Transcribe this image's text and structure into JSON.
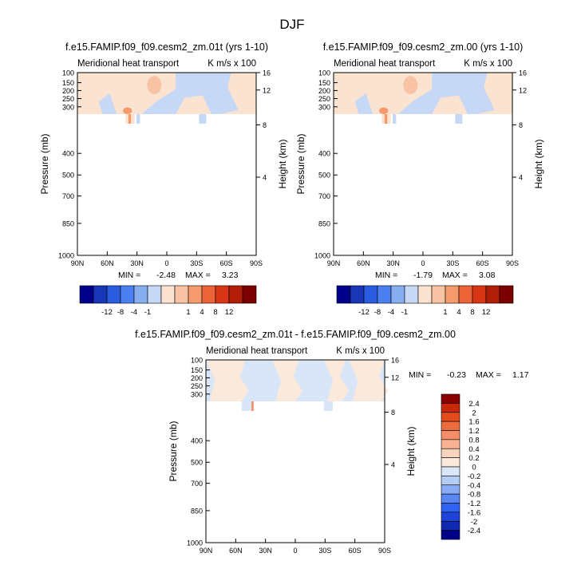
{
  "figure_title": "DJF",
  "colors": {
    "frame": "#000000",
    "text": "#000000",
    "background": "#ffffff"
  },
  "panel_palette": [
    "#00008b",
    "#1a36b8",
    "#2a5ce0",
    "#4a80f0",
    "#88aef2",
    "#c6d8f5",
    "#fae3d0",
    "#f8c3a4",
    "#f49a6c",
    "#ec6338",
    "#d83516",
    "#b01e08",
    "#7d0000"
  ],
  "diff_palette": [
    "#00008b",
    "#1128b0",
    "#1f42d8",
    "#2e62f0",
    "#5a86f2",
    "#8aacf5",
    "#b4cdf5",
    "#d8e6f8",
    "#fbeadb",
    "#f9d4bd",
    "#f6b293",
    "#f38f68",
    "#ee6b3e",
    "#e34b1c",
    "#c62a08",
    "#8b0000"
  ],
  "chart_data": [
    {
      "type": "heatmap",
      "id": "panel-1",
      "title": "f.e15.FAMIP.f09_f09.cesm2_zm.01t (yrs 1-10)",
      "left_label": "Meridional heat transport",
      "right_label": "K m/s x 100",
      "xlabel": "",
      "ylabel": "Pressure (mb)",
      "y2label": "Height (km)",
      "xticks": [
        "90N",
        "60N",
        "30N",
        "0",
        "30S",
        "60S",
        "90S"
      ],
      "yticks": [
        100,
        150,
        200,
        250,
        300,
        400,
        500,
        700,
        850,
        1000
      ],
      "y2ticks": [
        16,
        12,
        8,
        4
      ],
      "stats": {
        "min_label": "MIN =",
        "min": "-2.48",
        "max_label": "MAX =",
        "max": "3.23"
      },
      "colorbar": {
        "orientation": "horizontal",
        "labels": [
          "-12",
          "-8",
          "-4",
          "-1",
          "1",
          "4",
          "8",
          "12"
        ]
      }
    },
    {
      "type": "heatmap",
      "id": "panel-2",
      "title": "f.e15.FAMIP.f09_f09.cesm2_zm.00 (yrs 1-10)",
      "left_label": "Meridional heat transport",
      "right_label": "K m/s x 100",
      "xlabel": "",
      "ylabel": "Pressure (mb)",
      "y2label": "Height (km)",
      "xticks": [
        "90N",
        "60N",
        "30N",
        "0",
        "30S",
        "60S",
        "90S"
      ],
      "yticks": [
        100,
        150,
        200,
        250,
        300,
        400,
        500,
        700,
        850,
        1000
      ],
      "y2ticks": [
        16,
        12,
        8,
        4
      ],
      "stats": {
        "min_label": "MIN =",
        "min": "-1.79",
        "max_label": "MAX =",
        "max": "3.08"
      },
      "colorbar": {
        "orientation": "horizontal",
        "labels": [
          "-12",
          "-8",
          "-4",
          "-1",
          "1",
          "4",
          "8",
          "12"
        ]
      }
    },
    {
      "type": "heatmap",
      "id": "panel-diff",
      "title": "f.e15.FAMIP.f09_f09.cesm2_zm.01t - f.e15.FAMIP.f09_f09.cesm2_zm.00",
      "left_label": "Meridional heat transport",
      "right_label": "K m/s x 100",
      "xlabel": "",
      "ylabel": "Pressure (mb)",
      "y2label": "Height (km)",
      "xticks": [
        "90N",
        "60N",
        "30N",
        "0",
        "30S",
        "60S",
        "90S"
      ],
      "yticks": [
        100,
        150,
        200,
        250,
        300,
        400,
        500,
        700,
        850,
        1000
      ],
      "y2ticks": [
        16,
        12,
        8,
        4
      ],
      "stats": {
        "min_label": "MIN =",
        "min": "-0.23",
        "max_label": "MAX =",
        "max": "1.17"
      },
      "colorbar": {
        "orientation": "vertical",
        "labels": [
          "2.4",
          "2",
          "1.6",
          "1.2",
          "0.8",
          "0.4",
          "0.2",
          "0",
          "-0.2",
          "-0.4",
          "-0.8",
          "-1.2",
          "-1.6",
          "-2",
          "-2.4"
        ]
      }
    }
  ]
}
